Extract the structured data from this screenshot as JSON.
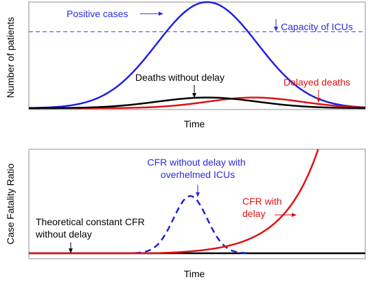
{
  "chart_data": [
    {
      "type": "line",
      "xlabel": "Time",
      "ylabel": "Number of patients",
      "xlim": [
        0,
        100
      ],
      "ylim": [
        0,
        100
      ],
      "grid": false,
      "series": [
        {
          "name": "Positive cases",
          "color": "#1f1fe0",
          "style": "solid",
          "shape": "gaussian",
          "peak_x": 53,
          "peak_y": 100,
          "width": 15
        },
        {
          "name": "Capacity of ICUs",
          "color": "#3a3af0",
          "style": "dashed",
          "shape": "constant",
          "y": 72
        },
        {
          "name": "Deaths without delay",
          "color": "#000000",
          "style": "solid",
          "shape": "gaussian",
          "peak_x": 53,
          "peak_y": 10,
          "width": 15
        },
        {
          "name": "Delayed deaths",
          "color": "#e01010",
          "style": "solid",
          "shape": "gaussian",
          "peak_x": 67,
          "peak_y": 10,
          "width": 14
        }
      ],
      "annotations": [
        {
          "text": "Positive cases",
          "color": "#2a2ae0"
        },
        {
          "text": "Capacity of ICUs",
          "color": "#2a2ae0"
        },
        {
          "text": "Deaths without delay",
          "color": "#000000"
        },
        {
          "text": "Delayed deaths",
          "color": "#e01010"
        }
      ]
    },
    {
      "type": "line",
      "xlabel": "Time",
      "ylabel": "Case Fatality Ratio",
      "xlim": [
        0,
        100
      ],
      "ylim": [
        0,
        100
      ],
      "grid": false,
      "series": [
        {
          "name": "Theoretical constant CFR without delay",
          "color": "#000000",
          "style": "solid",
          "shape": "constant",
          "y": 0
        },
        {
          "name": "CFR without delay with overhelmed ICUs",
          "color": "#1f1fe0",
          "style": "dashed",
          "shape": "gaussian",
          "peak_x": 48,
          "peak_y": 55,
          "width": 5
        },
        {
          "name": "CFR with delay",
          "color": "#e01010",
          "style": "solid",
          "shape": "exponential",
          "start_x": 37,
          "end_x": 86,
          "end_y": 100
        }
      ],
      "annotations": [
        {
          "text_lines": [
            "CFR without delay with",
            "overhelmed ICUs"
          ],
          "color": "#2a2ae0"
        },
        {
          "text_lines": [
            "CFR with",
            "delay"
          ],
          "color": "#e01010"
        },
        {
          "text_lines": [
            "Theoretical constant CFR",
            "without delay"
          ],
          "color": "#000000"
        }
      ]
    }
  ]
}
